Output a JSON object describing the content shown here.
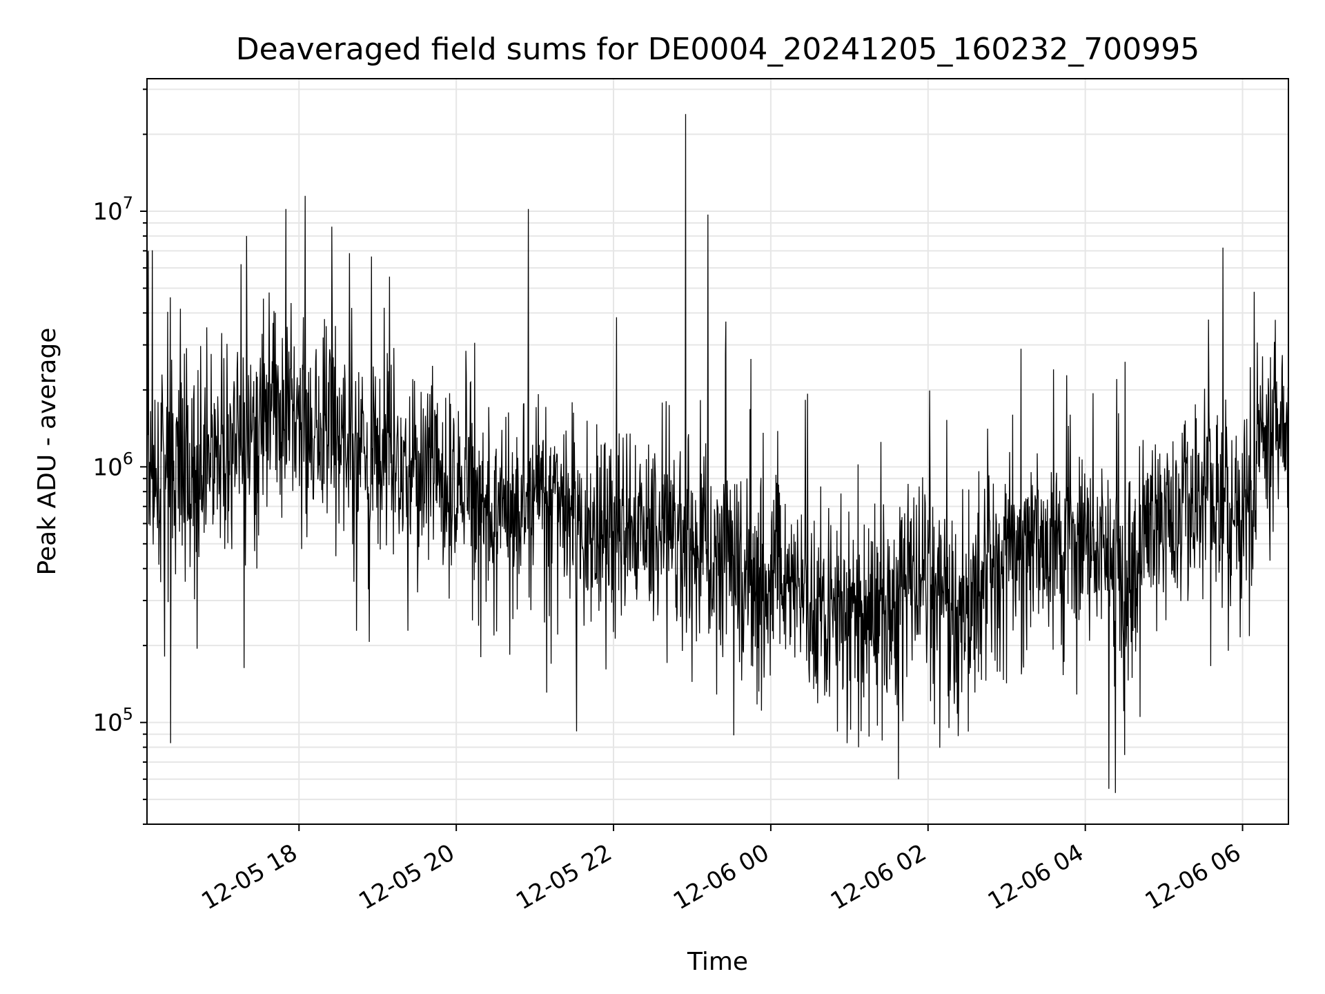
{
  "chart_data": {
    "type": "line",
    "title": "Deaveraged field sums for DE0004_20241205_160232_700995",
    "xlabel": "Time",
    "ylabel": "Peak ADU - average",
    "yscale": "log",
    "xlim": [
      "2024-12-05 16:04",
      "2024-12-06 06:35"
    ],
    "ylim": [
      40000,
      33000000
    ],
    "x_ticks": [
      "12-05 18",
      "12-05 20",
      "12-05 22",
      "12-06 00",
      "12-06 02",
      "12-06 04",
      "12-06 06"
    ],
    "y_ticks": [
      {
        "base": "10",
        "exp": "5",
        "value": 100000
      },
      {
        "base": "10",
        "exp": "6",
        "value": 1000000
      },
      {
        "base": "10",
        "exp": "7",
        "value": 10000000
      }
    ],
    "grid": true,
    "line_color": "#000000",
    "grid_color": "#e6e6e6",
    "series": [
      {
        "x": [
          "2024-12-05 16:05",
          "2024-12-05 16:15",
          "2024-12-05 16:30",
          "2024-12-05 16:45",
          "2024-12-05 17:00",
          "2024-12-05 17:15",
          "2024-12-05 17:30",
          "2024-12-05 17:45",
          "2024-12-05 18:00",
          "2024-12-05 18:15",
          "2024-12-05 18:30",
          "2024-12-05 18:45",
          "2024-12-05 19:00",
          "2024-12-05 19:15",
          "2024-12-05 19:30",
          "2024-12-05 19:45",
          "2024-12-05 20:00",
          "2024-12-05 20:15",
          "2024-12-05 20:30",
          "2024-12-05 20:45",
          "2024-12-05 21:00",
          "2024-12-05 21:15",
          "2024-12-05 21:30",
          "2024-12-05 21:45",
          "2024-12-05 22:00",
          "2024-12-05 22:15",
          "2024-12-05 22:30",
          "2024-12-05 22:45",
          "2024-12-05 23:00",
          "2024-12-05 23:15",
          "2024-12-05 23:30",
          "2024-12-05 23:45",
          "2024-12-06 00:00",
          "2024-12-06 00:15",
          "2024-12-06 00:30",
          "2024-12-06 00:45",
          "2024-12-06 01:00",
          "2024-12-06 01:15",
          "2024-12-06 01:30",
          "2024-12-06 01:45",
          "2024-12-06 02:00",
          "2024-12-06 02:15",
          "2024-12-06 02:30",
          "2024-12-06 02:45",
          "2024-12-06 03:00",
          "2024-12-06 03:15",
          "2024-12-06 03:30",
          "2024-12-06 03:45",
          "2024-12-06 04:00",
          "2024-12-06 04:15",
          "2024-12-06 04:30",
          "2024-12-06 04:45",
          "2024-12-06 05:00",
          "2024-12-06 05:15",
          "2024-12-06 05:30",
          "2024-12-06 05:45",
          "2024-12-06 06:00",
          "2024-12-06 06:15",
          "2024-12-06 06:30"
        ],
        "y": [
          900000,
          800000,
          1000000,
          900000,
          1200000,
          1000000,
          1500000,
          1800000,
          1600000,
          1400000,
          1300000,
          1200000,
          1100000,
          1100000,
          1000000,
          900000,
          800000,
          900000,
          600000,
          700000,
          800000,
          700000,
          650000,
          600000,
          550000,
          550000,
          600000,
          500000,
          450000,
          450000,
          500000,
          400000,
          400000,
          350000,
          300000,
          280000,
          260000,
          250000,
          260000,
          400000,
          350000,
          280000,
          250000,
          350000,
          450000,
          500000,
          550000,
          500000,
          500000,
          550000,
          300000,
          500000,
          600000,
          700000,
          800000,
          750000,
          700000,
          1400000,
          1500000
        ],
        "peaks": [
          {
            "t": "2024-12-05 16:05",
            "v": 7000000
          },
          {
            "t": "2024-12-05 17:20",
            "v": 8000000
          },
          {
            "t": "2024-12-05 17:50",
            "v": 10200000
          },
          {
            "t": "2024-12-05 18:25",
            "v": 8700000
          },
          {
            "t": "2024-12-05 20:55",
            "v": 10200000
          },
          {
            "t": "2024-12-05 22:55",
            "v": 24000000
          },
          {
            "t": "2024-12-05 23:12",
            "v": 9700000
          },
          {
            "t": "2024-12-06 05:45",
            "v": 7200000
          }
        ],
        "dips": [
          {
            "t": "2024-12-05 16:22",
            "v": 83000
          },
          {
            "t": "2024-12-06 01:07",
            "v": 80000
          },
          {
            "t": "2024-12-06 01:25",
            "v": 85000
          },
          {
            "t": "2024-12-06 04:18",
            "v": 55000
          },
          {
            "t": "2024-12-06 04:23",
            "v": 53000
          }
        ]
      }
    ]
  }
}
